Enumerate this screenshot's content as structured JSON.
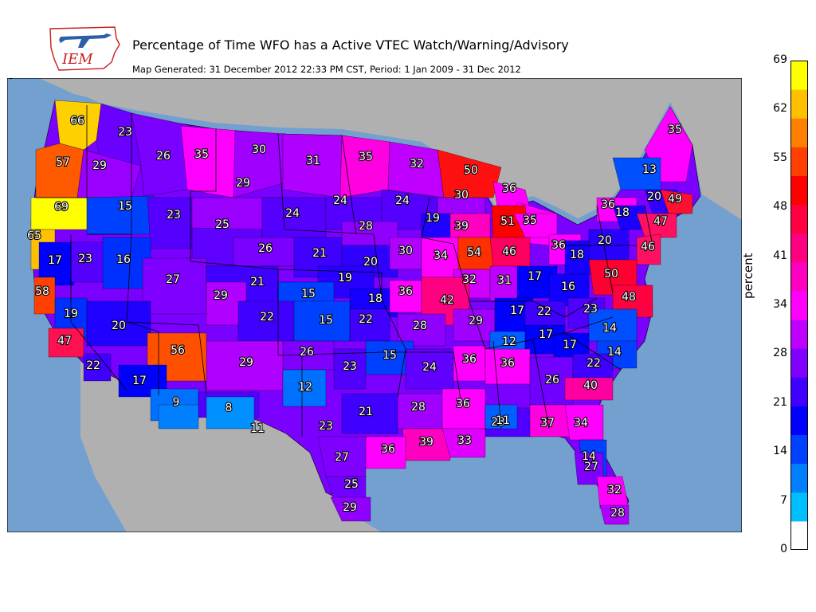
{
  "header": {
    "title": "Percentage of Time WFO has a Active VTEC Watch/Warning/Advisory",
    "subtitle": "Map Generated: 31 December 2012 22:33 PM CST, Period: 1 Jan 2009 - 31 Dec 2012",
    "logo_text": "IEM"
  },
  "colorbar": {
    "title": "percent",
    "ticks": [
      "0",
      "7",
      "14",
      "21",
      "28",
      "34",
      "41",
      "48",
      "55",
      "62",
      "69"
    ],
    "colors": [
      "#ffffff",
      "#00bfff",
      "#0080ff",
      "#0040ff",
      "#0000ff",
      "#4000ff",
      "#8000ff",
      "#c000ff",
      "#ff00ff",
      "#ff00c0",
      "#ff0080",
      "#ff0040",
      "#ff0000",
      "#ff4000",
      "#ff8000",
      "#ffc000",
      "#ffff00"
    ]
  },
  "map": {
    "ocean_color": "#74a0d0",
    "land_color": "#b0b0b0",
    "values": [
      {
        "label": "66",
        "color": "#ffd000"
      },
      {
        "label": "23",
        "color": "#6a00ff"
      },
      {
        "label": "57",
        "color": "#ff5a00"
      },
      {
        "label": "29",
        "color": "#9a00ff"
      },
      {
        "label": "26",
        "color": "#7a00ff"
      },
      {
        "label": "35",
        "color": "#ff00ff"
      },
      {
        "label": "30",
        "color": "#a000ff"
      },
      {
        "label": "31",
        "color": "#b000ff"
      },
      {
        "label": "35",
        "color": "#ff00e0"
      },
      {
        "label": "32",
        "color": "#c000ff"
      },
      {
        "label": "50",
        "color": "#ff1010"
      },
      {
        "label": "36",
        "color": "#ff00ff"
      },
      {
        "label": "35",
        "color": "#ff00ff"
      },
      {
        "label": "35",
        "color": "#ff00ff"
      },
      {
        "label": "13",
        "color": "#0050ff"
      },
      {
        "label": "69",
        "color": "#ffff00"
      },
      {
        "label": "15",
        "color": "#0040ff"
      },
      {
        "label": "23",
        "color": "#5500ff"
      },
      {
        "label": "29",
        "color": "#9a00ff"
      },
      {
        "label": "25",
        "color": "#6000ff"
      },
      {
        "label": "24",
        "color": "#5500ff"
      },
      {
        "label": "24",
        "color": "#5500ff"
      },
      {
        "label": "24",
        "color": "#5500ff"
      },
      {
        "label": "30",
        "color": "#a000ff"
      },
      {
        "label": "19",
        "color": "#2000ff"
      },
      {
        "label": "20",
        "color": "#3000ff"
      },
      {
        "label": "49",
        "color": "#ff1030"
      },
      {
        "label": "36",
        "color": "#ff00ff"
      },
      {
        "label": "18",
        "color": "#1a00ff"
      },
      {
        "label": "65",
        "color": "#ffc000"
      },
      {
        "label": "28",
        "color": "#9000ff"
      },
      {
        "label": "39",
        "color": "#ff00c0"
      },
      {
        "label": "51",
        "color": "#ff0000"
      },
      {
        "label": "35",
        "color": "#ff00ff"
      },
      {
        "label": "47",
        "color": "#ff1060"
      },
      {
        "label": "17",
        "color": "#0000ff"
      },
      {
        "label": "23",
        "color": "#5500ff"
      },
      {
        "label": "16",
        "color": "#0030ff"
      },
      {
        "label": "26",
        "color": "#7a00ff"
      },
      {
        "label": "21",
        "color": "#4000ff"
      },
      {
        "label": "20",
        "color": "#3000ff"
      },
      {
        "label": "30",
        "color": "#b000ff"
      },
      {
        "label": "34",
        "color": "#ff00ff"
      },
      {
        "label": "54",
        "color": "#ff3000"
      },
      {
        "label": "46",
        "color": "#ff0060"
      },
      {
        "label": "36",
        "color": "#ff00ff"
      },
      {
        "label": "18",
        "color": "#1500ff"
      },
      {
        "label": "20",
        "color": "#2800ff"
      },
      {
        "label": "46",
        "color": "#ff1060"
      },
      {
        "label": "27",
        "color": "#8000ff"
      },
      {
        "label": "21",
        "color": "#4000ff"
      },
      {
        "label": "19",
        "color": "#2800ff"
      },
      {
        "label": "32",
        "color": "#d000ff"
      },
      {
        "label": "31",
        "color": "#c000ff"
      },
      {
        "label": "17",
        "color": "#0000ff"
      },
      {
        "label": "16",
        "color": "#1000ff"
      },
      {
        "label": "50",
        "color": "#ff0030"
      },
      {
        "label": "58",
        "color": "#ff4000"
      },
      {
        "label": "29",
        "color": "#b000ff"
      },
      {
        "label": "15",
        "color": "#0040ff"
      },
      {
        "label": "18",
        "color": "#1500ff"
      },
      {
        "label": "36",
        "color": "#ff00ff"
      },
      {
        "label": "42",
        "color": "#ff0080"
      },
      {
        "label": "48",
        "color": "#ff0040"
      },
      {
        "label": "19",
        "color": "#0030ff"
      },
      {
        "label": "20",
        "color": "#2000ff"
      },
      {
        "label": "22",
        "color": "#4000ff"
      },
      {
        "label": "15",
        "color": "#0040ff"
      },
      {
        "label": "22",
        "color": "#4000ff"
      },
      {
        "label": "28",
        "color": "#9000ff"
      },
      {
        "label": "29",
        "color": "#a000ff"
      },
      {
        "label": "17",
        "color": "#0000ff"
      },
      {
        "label": "22",
        "color": "#4000ff"
      },
      {
        "label": "23",
        "color": "#5000ff"
      },
      {
        "label": "14",
        "color": "#0050ff"
      },
      {
        "label": "47",
        "color": "#ff1050"
      },
      {
        "label": "56",
        "color": "#ff5000"
      },
      {
        "label": "12",
        "color": "#0060ff"
      },
      {
        "label": "17",
        "color": "#0000ff"
      },
      {
        "label": "17",
        "color": "#0000ff"
      },
      {
        "label": "22",
        "color": "#4000ff"
      },
      {
        "label": "26",
        "color": "#8000ff"
      },
      {
        "label": "15",
        "color": "#0040ff"
      },
      {
        "label": "24",
        "color": "#6000ff"
      },
      {
        "label": "36",
        "color": "#ff00ff"
      },
      {
        "label": "36",
        "color": "#ff00ff"
      },
      {
        "label": "14",
        "color": "#0040ff"
      },
      {
        "label": "29",
        "color": "#b000ff"
      },
      {
        "label": "23",
        "color": "#5000ff"
      },
      {
        "label": "26",
        "color": "#7000ff"
      },
      {
        "label": "22",
        "color": "#4000ff"
      },
      {
        "label": "17",
        "color": "#0000ff"
      },
      {
        "label": "12",
        "color": "#0070ff"
      },
      {
        "label": "11",
        "color": "#0070ff"
      },
      {
        "label": "23",
        "color": "#5000ff"
      },
      {
        "label": "40",
        "color": "#ff00a0"
      },
      {
        "label": "9",
        "color": "#0080ff"
      },
      {
        "label": "8",
        "color": "#0090ff"
      },
      {
        "label": "21",
        "color": "#4000ff"
      },
      {
        "label": "28",
        "color": "#a000ff"
      },
      {
        "label": "36",
        "color": "#ff00ff"
      },
      {
        "label": "23",
        "color": "#5000ff"
      },
      {
        "label": "11",
        "color": "#0060ff"
      },
      {
        "label": "37",
        "color": "#ff00e0"
      },
      {
        "label": "34",
        "color": "#ff00ff"
      },
      {
        "label": "39",
        "color": "#ff00c0"
      },
      {
        "label": "33",
        "color": "#e000ff"
      },
      {
        "label": "36",
        "color": "#ff00ff"
      },
      {
        "label": "27",
        "color": "#8000ff"
      },
      {
        "label": "14",
        "color": "#0040ff"
      },
      {
        "label": "27",
        "color": "#8000ff"
      },
      {
        "label": "25",
        "color": "#7000ff"
      },
      {
        "label": "32",
        "color": "#ff00ff"
      },
      {
        "label": "29",
        "color": "#9000ff"
      },
      {
        "label": "28",
        "color": "#b000ff"
      },
      {
        "label": "16",
        "color": "#1000ff"
      }
    ]
  }
}
